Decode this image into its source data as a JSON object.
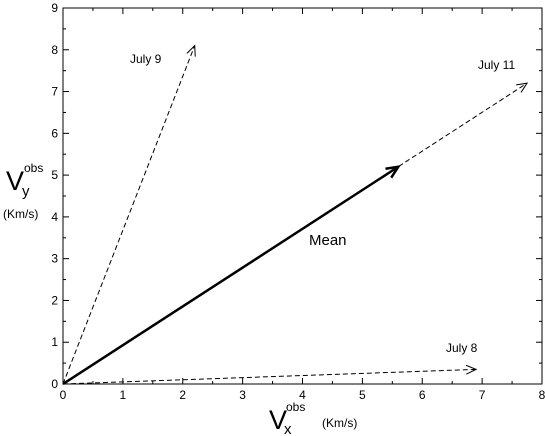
{
  "chart_data": {
    "type": "line",
    "xlim": [
      0,
      8
    ],
    "ylim": [
      0,
      9
    ],
    "x_ticks": [
      "0",
      "1",
      "2",
      "3",
      "4",
      "5",
      "6",
      "7",
      "8"
    ],
    "y_ticks": [
      "0",
      "1",
      "2",
      "3",
      "4",
      "5",
      "6",
      "7",
      "8",
      "9"
    ],
    "xlabel": {
      "symbol": "V",
      "sub": "x",
      "sup": "obs",
      "unit": "(Km/s)"
    },
    "ylabel": {
      "symbol": "V",
      "sub": "y",
      "sup": "obs",
      "unit": "(Km/s)"
    },
    "grid": false,
    "series": [
      {
        "name": "July 9",
        "style": "dashed",
        "x": [
          0,
          2.2
        ],
        "y": [
          0,
          8.1
        ]
      },
      {
        "name": "July 11",
        "style": "dashed",
        "x": [
          0,
          7.75
        ],
        "y": [
          0,
          7.2
        ]
      },
      {
        "name": "July 8",
        "style": "dashed",
        "x": [
          0,
          6.9
        ],
        "y": [
          0,
          0.35
        ]
      },
      {
        "name": "Mean",
        "style": "solid",
        "x": [
          0,
          5.6
        ],
        "y": [
          0,
          5.2
        ]
      }
    ]
  }
}
